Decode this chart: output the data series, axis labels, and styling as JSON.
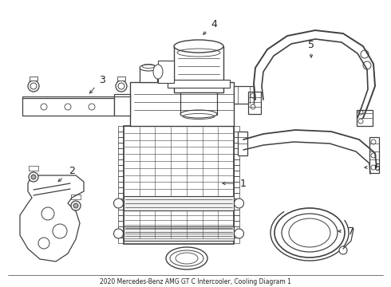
{
  "title": "2020 Mercedes-Benz AMG GT C Intercooler, Cooling Diagram 1",
  "bg_color": "#ffffff",
  "line_color": "#404040",
  "label_color": "#222222",
  "lw": 0.9
}
